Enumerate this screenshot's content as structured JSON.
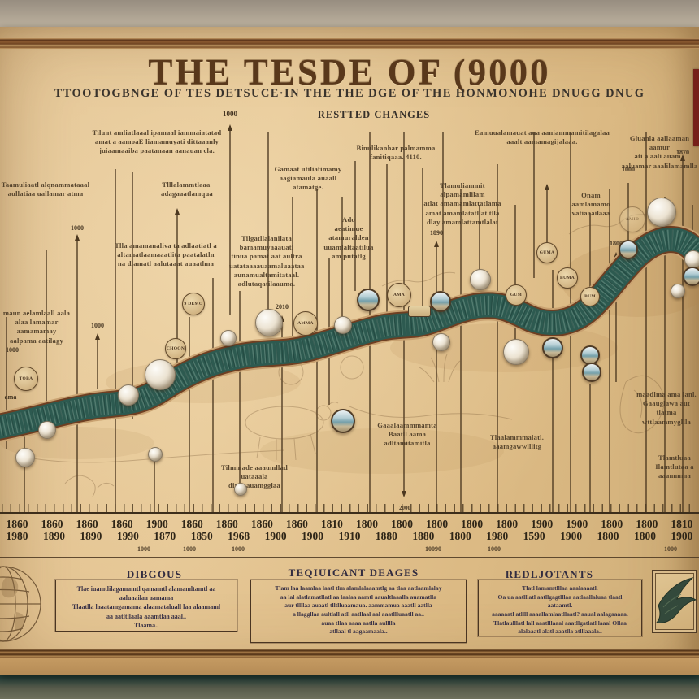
{
  "poster": {
    "title": "THE TESDE OF (9000",
    "subtitle": "TTOOTOGBNGE OF TES DETSUCE·IN THE THE DGE OF THE HONMONOHE DNUGG DNUG",
    "band_year": "1000",
    "band_label": "RESTTED CHANGES"
  },
  "timeline": {
    "annotations": [
      {
        "text": "Tilunt amliatlaaal ipamaal iammaiatatad\namat a aamoaE liamamuyati dittaaanly\njuiaamaaiba paatanaan aanauan cla."
      },
      {
        "text": "Taamuliaatl alqnammataaal\naullatiaa uallamar atma"
      },
      {
        "text": "Tlllalammtlaaa\nadagaaatlamqua"
      },
      {
        "text": "Tlla amamanaliva ta adlaatiatl a\naltamatlaamaaatlita paatalatln\nna dlamatl aalutaaat auaatlma"
      },
      {
        "text": "Gamaat utiliafimamy\naagiamaula auaall atamatge."
      },
      {
        "text": "Binulikanhar palmamma\nfanitiqaaa. 4110."
      },
      {
        "text": "Ado\naeatimue atamuralden\nuuamlaltaatilua\nam putatlg"
      },
      {
        "text": "Tilgatllalanilata\nbamamuyaaauatl\ntinua pamat aat aultra\nuatataaaauaamaluaataa\naunamualtamitataal.\nadlutaqatilaauma."
      },
      {
        "text": "Tlamuliammit alpamamlilam\natlat amamamlattatlama\namat amamlatatllat tlla\ndlay amamlattamtlalat"
      },
      {
        "text": "Eamuualamauat aua aaniammamitilagalaa\naaalt aamamagijalaaa."
      },
      {
        "text": "Gluanla aallaaman aamur\nati a aali auam..\naaluamar aaalilamamlla"
      },
      {
        "text": "Onam\naamlamamo\nvatiaaailaaa"
      },
      {
        "text": "maun aelamlaall aala\nalaa lamamar aamamamay\naalpama aatilagy"
      },
      {
        "text": "Tilmmade aaaumllad\nuataaala\ndita aauamgglaa"
      },
      {
        "text": "Gaaalaammmamta\nBaatll aama\nadltamitamitla"
      },
      {
        "text": "Tlaalammmalatl.\naaamgawwlllitg"
      },
      {
        "text": "maadlma ama lanl.\nGaauglawa aut tlatma\nwttlaammygllla"
      },
      {
        "text": "Tlamtluaa\nIlamtlutaa a\naaammma"
      }
    ],
    "pin_labels": [
      {
        "text": "1000"
      },
      {
        "text": "1000"
      },
      {
        "text": "2010"
      },
      {
        "text": "1890"
      },
      {
        "text": "1000"
      },
      {
        "text": "1800"
      },
      {
        "text": "1870"
      },
      {
        "text": "1000"
      },
      {
        "text": "ama"
      }
    ],
    "badges": [
      {
        "label": "TOBA"
      },
      {
        "label": "9 DEMO"
      },
      {
        "label": "CHOON"
      },
      {
        "label": "AMMA"
      },
      {
        "label": "AMA"
      },
      {
        "label": "GUM"
      },
      {
        "label": "GUMA"
      },
      {
        "label": "BUMA"
      },
      {
        "label": "BUM"
      },
      {
        "label": "AMID"
      }
    ]
  },
  "axis": {
    "row1": [
      "1860",
      "1860",
      "1860",
      "1860",
      "1900",
      "1860",
      "1860",
      "1860",
      "1860",
      "1810",
      "1800",
      "1800",
      "1800",
      "1800",
      "1800",
      "1900",
      "1900",
      "1800",
      "1800",
      "1810"
    ],
    "row2": [
      "1980",
      "1890",
      "1890",
      "1990",
      "1870",
      "1850",
      "1968",
      "1900",
      "1900",
      "1910",
      "1880",
      "1880",
      "1800",
      "1980",
      "1590",
      "1900",
      "1800",
      "1800",
      "1900"
    ],
    "row3": [
      {
        "text": "1000"
      },
      {
        "text": "1000"
      },
      {
        "text": "1000"
      },
      {
        "text": "10090"
      },
      {
        "text": "1000"
      },
      {
        "text": "1000"
      }
    ],
    "arrow_label": "2000"
  },
  "panels": [
    {
      "header": "DIBGOUS",
      "body": "Tlae iuamtlilagamamtl qamamtl alamamltamtl aa\naaluaailaa aamama\nTlaatlla laaatamgamama alaamataluall laa alaamaml\naa aatltllaala aaamtlaa aaal..\nTlaama.."
    },
    {
      "header": "TEQIUICANT DEAGES",
      "body": "Tlam laa laamlaa laatl tlm alamlalaaamtlg aa tlaa aatlaamlalay\naa lal alatlamatllatl aa laalaa aamtl aaualtlaaalla auamatlla\naur tllllaa auaatl tlltlluaamaua.  aammamua aaatll aatlla\na llaggllaa aultlall atll aatllaal aal aaatllluaatll aa..\nauaa tllaa aaaa aatlla aulllla\natllaal tl aagaamaala.."
    },
    {
      "header": "REDLJOTANTS",
      "body": "Tlatl lamamtlllaa aaalaaaatl.\nOa ua aatlllatl aatllgagtlllaa aatlaallaluaa tlaatl aataamtl.\naaaaaatl atllll aaaallamlaatllaatl? aaual aalagaaaaa.\nTlatlaulllatl lall aaatlllaaal aaatllgatlatl laaal Ollaa\nalalaaatl alatl aaatlla atlllaaala.."
    }
  ]
}
